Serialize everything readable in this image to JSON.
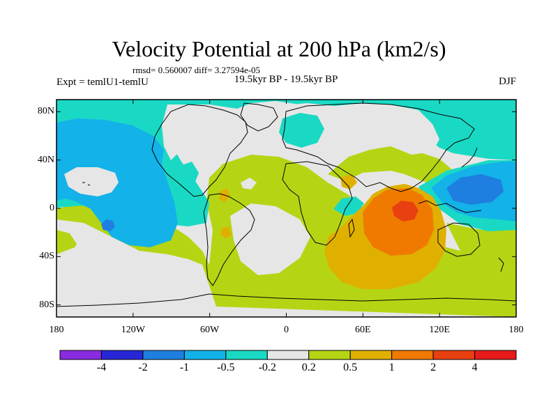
{
  "chart_data": {
    "type": "heatmap",
    "title": "Velocity Potential at 200 hPa (km2/s)",
    "stats_line": "rmsd= 0.560007 diff= 3.27594e-05",
    "left_string": "Expt = temlU1-temlU",
    "center_string": "19.5kyr BP - 19.5kyr BP",
    "right_string": "DJF",
    "lon_range": [
      -180,
      180
    ],
    "lat_range": [
      -90,
      90
    ],
    "x_ticks": [
      {
        "value": -180,
        "label": "180"
      },
      {
        "value": -120,
        "label": "120W"
      },
      {
        "value": -60,
        "label": "60W"
      },
      {
        "value": 0,
        "label": "0"
      },
      {
        "value": 60,
        "label": "60E"
      },
      {
        "value": 120,
        "label": "120E"
      },
      {
        "value": 180,
        "label": "180"
      }
    ],
    "y_ticks": [
      {
        "value": 80,
        "label": "80N"
      },
      {
        "value": 40,
        "label": "40N"
      },
      {
        "value": 0,
        "label": "0"
      },
      {
        "value": -40,
        "label": "40S"
      },
      {
        "value": -80,
        "label": "80S"
      }
    ],
    "colorbar": {
      "colors": [
        "#8a2be2",
        "#2727d8",
        "#1e7fe0",
        "#13b2e8",
        "#1ad9c4",
        "#e6e6e6",
        "#b5d514",
        "#e0b000",
        "#f07a00",
        "#e84010",
        "#e81a1a"
      ],
      "labels": [
        "-4",
        "-2",
        "-1",
        "-0.5",
        "-0.2",
        "0.2",
        "0.5",
        "1",
        "2",
        "4"
      ]
    },
    "regions": [
      {
        "name": "north-polar-low",
        "level": "-0.2",
        "lon": [
          -180,
          180
        ],
        "lat": [
          72,
          90
        ]
      },
      {
        "name": "northwest-pacific-low",
        "level": "-0.5",
        "lon": [
          -180,
          -125
        ],
        "lat": [
          15,
          70
        ]
      },
      {
        "name": "pacific-minimum",
        "level": "-1",
        "lon": [
          -147,
          -143
        ],
        "lat": [
          -22,
          -18
        ]
      },
      {
        "name": "western-pacific-low",
        "level": "-1",
        "lon": [
          125,
          170
        ],
        "lat": [
          -5,
          20
        ]
      },
      {
        "name": "indian-ocean-high",
        "level": "1",
        "lon": [
          40,
          115
        ],
        "lat": [
          -45,
          30
        ]
      },
      {
        "name": "indian-ocean-maximum",
        "level": "2",
        "lon": [
          75,
          100
        ],
        "lat": [
          -15,
          5
        ]
      },
      {
        "name": "southern-high",
        "level": "0.5",
        "lon": [
          -100,
          180
        ],
        "lat": [
          -90,
          -40
        ]
      }
    ]
  }
}
